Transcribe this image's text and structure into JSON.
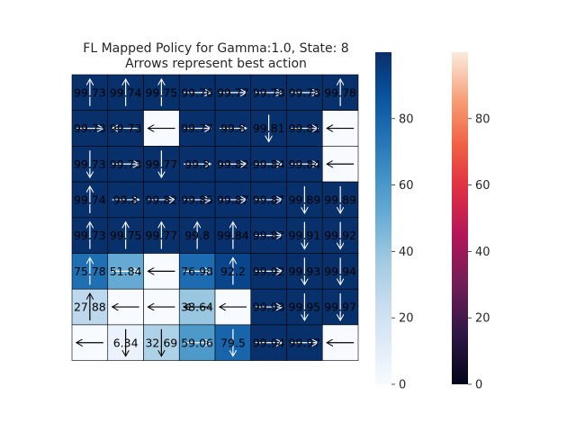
{
  "chart_data": {
    "type": "heatmap",
    "title": "FL Mapped Policy for Gamma:1.0, State: 8",
    "subtitle": "Arrows represent best action",
    "xlabel": "",
    "ylabel": "",
    "grid": true,
    "values": [
      [
        99.73,
        99.74,
        99.75,
        99.76,
        99.77,
        99.78,
        99.78,
        99.78
      ],
      [
        99.73,
        99.73,
        0,
        99.77,
        99.8,
        99.81,
        99.81,
        0
      ],
      [
        99.73,
        99.73,
        99.77,
        99.8,
        99.82,
        99.84,
        99.84,
        0
      ],
      [
        99.74,
        99.8,
        99.82,
        99.85,
        99.87,
        99.87,
        99.89,
        99.89
      ],
      [
        99.73,
        99.75,
        99.77,
        99.8,
        99.84,
        99.87,
        99.91,
        99.92
      ],
      [
        75.78,
        51.84,
        0,
        76.98,
        92.2,
        99.92,
        99.93,
        99.94
      ],
      [
        27.88,
        0,
        0,
        38.64,
        0,
        99.93,
        99.95,
        99.97
      ],
      [
        0,
        6.34,
        32.69,
        59.06,
        79.5,
        99.94,
        99.97,
        0
      ]
    ],
    "labels": [
      [
        "99.73",
        "99.74",
        "99.75",
        "99.76",
        "99.77",
        "99.78",
        "99.78",
        "99.78"
      ],
      [
        "99.73",
        "99.73",
        "",
        "99.77",
        "99.8",
        "99.81",
        "99.81",
        ""
      ],
      [
        "99.73",
        "99.73",
        "99.77",
        "99.8",
        "99.82",
        "99.84",
        "99.84",
        ""
      ],
      [
        "99.74",
        "99.8",
        "99.82",
        "99.85",
        "99.87",
        "99.87",
        "99.89",
        "99.89"
      ],
      [
        "99.73",
        "99.75",
        "99.77",
        "99.8",
        "99.84",
        "99.87",
        "99.91",
        "99.92"
      ],
      [
        "75.78",
        "51.84",
        "",
        "76.98",
        "92.2",
        "99.92",
        "99.93",
        "99.94"
      ],
      [
        "27.88",
        "",
        "",
        "38.64",
        "",
        "99.93",
        "99.95",
        "99.97"
      ],
      [
        "",
        "6.34",
        "32.69",
        "59.06",
        "79.5",
        "99.94",
        "99.97",
        ""
      ]
    ],
    "arrows": [
      [
        "up",
        "up",
        "up",
        "right",
        "right",
        "right",
        "right",
        "up"
      ],
      [
        "right",
        "left",
        "left",
        "right",
        "right",
        "down",
        "right",
        "left"
      ],
      [
        "down",
        "right",
        "down",
        "right",
        "right",
        "right",
        "right",
        "left"
      ],
      [
        "up",
        "right",
        "right",
        "right",
        "right",
        "right",
        "down",
        "down"
      ],
      [
        "up",
        "up",
        "up",
        "up",
        "up",
        "right",
        "down",
        "down"
      ],
      [
        "up",
        "right",
        "left",
        "right",
        "up",
        "right",
        "down",
        "down"
      ],
      [
        "up",
        "left",
        "left",
        "left",
        "left",
        "right",
        "down",
        "down"
      ],
      [
        "left",
        "down",
        "down",
        "right",
        "down",
        "right",
        "right",
        "left"
      ]
    ],
    "colorbars": [
      {
        "cmap": "Blues",
        "ticks": [
          "0",
          "20",
          "40",
          "60",
          "80"
        ],
        "vmin": 0,
        "vmax": 100
      },
      {
        "cmap": "rocket",
        "ticks": [
          "0",
          "20",
          "40",
          "60",
          "80"
        ],
        "vmin": 0,
        "vmax": 100
      }
    ]
  }
}
